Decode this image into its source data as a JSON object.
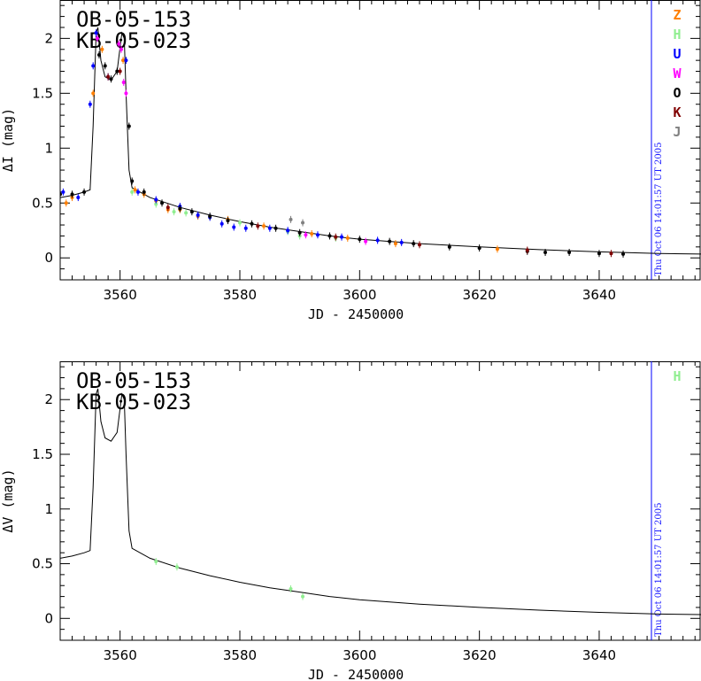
{
  "chart_data": [
    {
      "type": "scatter",
      "panel": "top",
      "event_labels": [
        "OB-05-153",
        "KB-05-023"
      ],
      "xlabel": "JD - 2450000",
      "ylabel": "ΔI (mag)",
      "xlim": [
        3550,
        3657
      ],
      "ylim": [
        -0.2,
        2.35
      ],
      "xticks": [
        3560,
        3580,
        3600,
        3620,
        3640
      ],
      "yticks": [
        0,
        0.5,
        1,
        1.5,
        2
      ],
      "timestamp": "Thu Oct 06 14:01:57 UT 2005",
      "model_curve": {
        "x": [
          3550,
          3552,
          3554,
          3555,
          3555.5,
          3556,
          3556.3,
          3556.8,
          3557.5,
          3558.5,
          3559.5,
          3560.3,
          3560.7,
          3561,
          3561.5,
          3562,
          3565,
          3570,
          3575,
          3580,
          3585,
          3590,
          3595,
          3600,
          3605,
          3610,
          3620,
          3630,
          3640,
          3650,
          3657
        ],
        "y": [
          0.55,
          0.57,
          0.6,
          0.62,
          1.2,
          2.05,
          2.1,
          1.8,
          1.65,
          1.62,
          1.7,
          2.05,
          2.0,
          1.5,
          0.8,
          0.64,
          0.55,
          0.46,
          0.39,
          0.33,
          0.28,
          0.24,
          0.2,
          0.17,
          0.15,
          0.13,
          0.1,
          0.075,
          0.055,
          0.04,
          0.035
        ]
      },
      "series": [
        {
          "name": "Z",
          "color": "#ff7f00",
          "points": [
            [
              3551,
              0.5
            ],
            [
              3552,
              0.55
            ],
            [
              3555.5,
              1.5
            ],
            [
              3557,
              1.9
            ],
            [
              3560.5,
              1.8
            ],
            [
              3562.5,
              0.62
            ],
            [
              3564,
              0.58
            ],
            [
              3566,
              0.52
            ],
            [
              3568,
              0.44
            ],
            [
              3570,
              0.44
            ],
            [
              3573,
              0.38
            ],
            [
              3578,
              0.35
            ],
            [
              3584,
              0.29
            ],
            [
              3592,
              0.22
            ],
            [
              3598,
              0.18
            ],
            [
              3606,
              0.13
            ],
            [
              3623,
              0.08
            ]
          ]
        },
        {
          "name": "H",
          "color": "#90ee90",
          "points": [
            [
              3562,
              0.6
            ],
            [
              3566,
              0.49
            ],
            [
              3569,
              0.42
            ],
            [
              3571,
              0.41
            ],
            [
              3580,
              0.32
            ],
            [
              3588,
              0.24
            ],
            [
              3590,
              0.2
            ],
            [
              3596,
              0.18
            ]
          ]
        },
        {
          "name": "U",
          "color": "#0000ff",
          "points": [
            [
              3550.5,
              0.6
            ],
            [
              3553,
              0.55
            ],
            [
              3555,
              1.4
            ],
            [
              3555.5,
              1.75
            ],
            [
              3556,
              2.05
            ],
            [
              3558,
              1.65
            ],
            [
              3561,
              1.8
            ],
            [
              3563,
              0.6
            ],
            [
              3566,
              0.53
            ],
            [
              3570,
              0.47
            ],
            [
              3573,
              0.39
            ],
            [
              3575,
              0.37
            ],
            [
              3577,
              0.31
            ],
            [
              3579,
              0.28
            ],
            [
              3581,
              0.27
            ],
            [
              3585,
              0.27
            ],
            [
              3588,
              0.25
            ],
            [
              3593,
              0.21
            ],
            [
              3597,
              0.19
            ],
            [
              3603,
              0.16
            ],
            [
              3607,
              0.14
            ]
          ]
        },
        {
          "name": "W",
          "color": "#ff00ff",
          "points": [
            [
              3556.2,
              2.0
            ],
            [
              3559.8,
              1.95
            ],
            [
              3560.2,
              1.9
            ],
            [
              3560.6,
              1.6
            ],
            [
              3561,
              1.5
            ],
            [
              3591,
              0.21
            ],
            [
              3601,
              0.15
            ]
          ]
        },
        {
          "name": "O",
          "color": "#000000",
          "points": [
            [
              3550,
              0.58
            ],
            [
              3552,
              0.58
            ],
            [
              3554,
              0.6
            ],
            [
              3556.5,
              1.85
            ],
            [
              3557.5,
              1.75
            ],
            [
              3558.5,
              1.63
            ],
            [
              3559.5,
              1.7
            ],
            [
              3561.5,
              1.2
            ],
            [
              3562,
              0.7
            ],
            [
              3564,
              0.6
            ],
            [
              3567,
              0.5
            ],
            [
              3570,
              0.45
            ],
            [
              3572,
              0.42
            ],
            [
              3575,
              0.38
            ],
            [
              3578,
              0.34
            ],
            [
              3582,
              0.31
            ],
            [
              3586,
              0.27
            ],
            [
              3590,
              0.23
            ],
            [
              3595,
              0.2
            ],
            [
              3600,
              0.17
            ],
            [
              3605,
              0.15
            ],
            [
              3609,
              0.13
            ],
            [
              3615,
              0.1
            ],
            [
              3620,
              0.09
            ],
            [
              3628,
              0.06
            ],
            [
              3631,
              0.05
            ],
            [
              3635,
              0.05
            ],
            [
              3640,
              0.04
            ],
            [
              3644,
              0.035
            ]
          ]
        },
        {
          "name": "K",
          "color": "#800000",
          "points": [
            [
              3558,
              1.65
            ],
            [
              3560,
              1.7
            ],
            [
              3568,
              0.46
            ],
            [
              3583,
              0.29
            ],
            [
              3596,
              0.19
            ],
            [
              3610,
              0.12
            ],
            [
              3628,
              0.07
            ],
            [
              3642,
              0.04
            ]
          ]
        },
        {
          "name": "J",
          "color": "#808080",
          "points": [
            [
              3588.5,
              0.35
            ],
            [
              3590.5,
              0.32
            ]
          ]
        }
      ]
    },
    {
      "type": "scatter",
      "panel": "bottom",
      "event_labels": [
        "OB-05-153",
        "KB-05-023"
      ],
      "xlabel": "JD - 2450000",
      "ylabel": "ΔV (mag)",
      "xlim": [
        3550,
        3657
      ],
      "ylim": [
        -0.2,
        2.35
      ],
      "xticks": [
        3560,
        3580,
        3600,
        3620,
        3640
      ],
      "yticks": [
        0,
        0.5,
        1,
        1.5,
        2
      ],
      "timestamp": "Thu Oct 06 14:01:57 UT 2005",
      "series": [
        {
          "name": "H",
          "color": "#90ee90",
          "points": [
            [
              3566,
              0.52
            ],
            [
              3569.5,
              0.47
            ],
            [
              3588.5,
              0.27
            ],
            [
              3590.5,
              0.2
            ]
          ]
        }
      ]
    }
  ]
}
